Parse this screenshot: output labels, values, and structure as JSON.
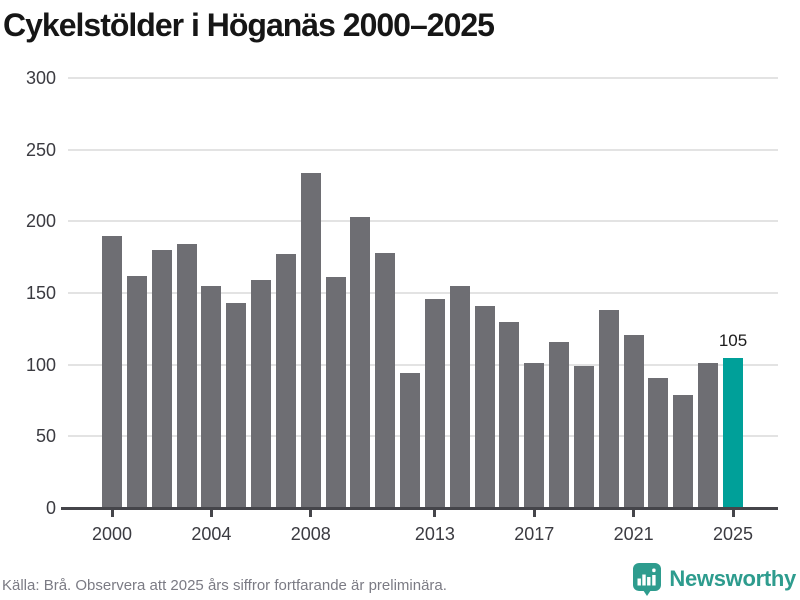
{
  "title": "Cykelstölder i Höganäs 2000–2025",
  "chart_data": {
    "type": "bar",
    "categories": [
      2000,
      2001,
      2002,
      2003,
      2004,
      2005,
      2006,
      2007,
      2008,
      2009,
      2010,
      2011,
      2012,
      2013,
      2014,
      2015,
      2016,
      2017,
      2018,
      2019,
      2020,
      2021,
      2022,
      2023,
      2024,
      2025
    ],
    "values": [
      190,
      162,
      180,
      184,
      155,
      143,
      159,
      177,
      234,
      161,
      203,
      178,
      94,
      146,
      155,
      141,
      130,
      101,
      116,
      99,
      138,
      121,
      91,
      79,
      101,
      105
    ],
    "title": "Cykelstölder i Höganäs 2000–2025",
    "xlabel": "",
    "ylabel": "",
    "ylim": [
      0,
      300
    ],
    "yticks": [
      0,
      50,
      100,
      150,
      200,
      250,
      300
    ],
    "xticks": [
      2000,
      2004,
      2008,
      2013,
      2017,
      2021,
      2025
    ],
    "grid": "horizontal",
    "legend": "none",
    "highlight": {
      "year": 2025,
      "value": 105,
      "label": "105"
    },
    "colors": {
      "bar": "#6e6e73",
      "highlight": "#00a099",
      "gridline": "#e3e3e3",
      "axis": "#45454a",
      "tick_label": "#3b3b41",
      "value_label": "#1c1c1c"
    }
  },
  "footer": {
    "source_note": "Källa: Brå. Observera att 2025 års siffror fortfarande är preliminära.",
    "logo_text": "Newsworthy",
    "logo_color": "#2e9c8e"
  }
}
